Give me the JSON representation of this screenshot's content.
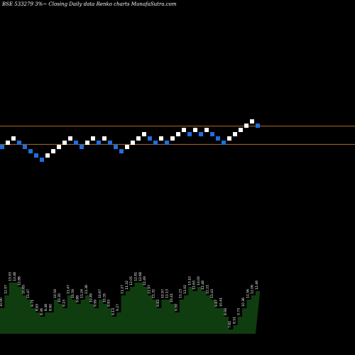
{
  "header": {
    "text": "BSE 533279 3%~  Closing Daily data  Renko  charts MunafaSutra.com"
  },
  "colors": {
    "background": "#000000",
    "brick_up": "#ffffff",
    "brick_down": "#1e6fe0",
    "level_line": "#b06a22",
    "volume_fill": "#0f3d0f",
    "label_text": "#ffffff"
  },
  "chart_data": {
    "type": "renko",
    "title": "BSE 533279 3%~ Closing Daily data Renko charts MunafaSutra.com",
    "bricks": [
      {
        "y": 0,
        "dir": "down"
      },
      {
        "y": 1,
        "dir": "up"
      },
      {
        "y": 2,
        "dir": "up"
      },
      {
        "y": 1,
        "dir": "down"
      },
      {
        "y": 0,
        "dir": "down"
      },
      {
        "y": -1,
        "dir": "down"
      },
      {
        "y": -2,
        "dir": "down"
      },
      {
        "y": -3,
        "dir": "down"
      },
      {
        "y": -2,
        "dir": "up"
      },
      {
        "y": -1,
        "dir": "up"
      },
      {
        "y": 0,
        "dir": "up"
      },
      {
        "y": 1,
        "dir": "up"
      },
      {
        "y": 2,
        "dir": "up"
      },
      {
        "y": 1,
        "dir": "down"
      },
      {
        "y": 0,
        "dir": "down"
      },
      {
        "y": 1,
        "dir": "up"
      },
      {
        "y": 2,
        "dir": "up"
      },
      {
        "y": 1,
        "dir": "down"
      },
      {
        "y": 2,
        "dir": "up"
      },
      {
        "y": 1,
        "dir": "down"
      },
      {
        "y": 0,
        "dir": "down"
      },
      {
        "y": -1,
        "dir": "down"
      },
      {
        "y": 0,
        "dir": "up"
      },
      {
        "y": 1,
        "dir": "up"
      },
      {
        "y": 2,
        "dir": "up"
      },
      {
        "y": 3,
        "dir": "up"
      },
      {
        "y": 2,
        "dir": "down"
      },
      {
        "y": 1,
        "dir": "down"
      },
      {
        "y": 2,
        "dir": "up"
      },
      {
        "y": 1,
        "dir": "down"
      },
      {
        "y": 2,
        "dir": "up"
      },
      {
        "y": 3,
        "dir": "up"
      },
      {
        "y": 4,
        "dir": "up"
      },
      {
        "y": 3,
        "dir": "down"
      },
      {
        "y": 4,
        "dir": "up"
      },
      {
        "y": 3,
        "dir": "down"
      },
      {
        "y": 4,
        "dir": "up"
      },
      {
        "y": 3,
        "dir": "down"
      },
      {
        "y": 2,
        "dir": "down"
      },
      {
        "y": 1,
        "dir": "down"
      },
      {
        "y": 2,
        "dir": "up"
      },
      {
        "y": 3,
        "dir": "up"
      },
      {
        "y": 4,
        "dir": "up"
      },
      {
        "y": 5,
        "dir": "up"
      },
      {
        "y": 6,
        "dir": "up"
      },
      {
        "y": 5,
        "dir": "down"
      }
    ],
    "levels": [
      5.4,
      1.1
    ],
    "volume_labels": [
      "10.90",
      "12.97",
      "13.93",
      "13.48",
      "12.86",
      "10.65",
      "11.47",
      "9.71",
      "8.63",
      "8.36",
      "8.48",
      "8.60",
      "10.59",
      "10.35",
      "9.23",
      "11.47",
      "10.59",
      "9.88",
      "11.24",
      "11.36",
      "10.49",
      "9.99",
      "10.67",
      "10.35",
      "9.83",
      "9.13",
      "9.27",
      "11.27",
      "11.32",
      "12.05",
      "12.81",
      "12.68",
      "12.49",
      "11.97",
      "11.32",
      "9.83",
      "10.97",
      "11.13",
      "10.41",
      "9.59",
      "11.23",
      "11.92",
      "13.10",
      "12.63",
      "13.00",
      "12.48",
      "12.21",
      "11.43",
      "9.87",
      "10.41",
      "8.94",
      "7.61",
      "8.51",
      "9.73",
      "10.36",
      "11.56",
      "12.06",
      "12.46"
    ],
    "volume_values": [
      6,
      9,
      12,
      12,
      11,
      9,
      8,
      6,
      5,
      4,
      5,
      5,
      8,
      7,
      6,
      9,
      8,
      7,
      8,
      9,
      7,
      6,
      8,
      7,
      6,
      4,
      5,
      9,
      10,
      11,
      12,
      12,
      11,
      9,
      8,
      6,
      8,
      8,
      7,
      5,
      8,
      9,
      11,
      10,
      11,
      10,
      9,
      8,
      6,
      6,
      4,
      1,
      2,
      4,
      6,
      8,
      9,
      10
    ]
  }
}
